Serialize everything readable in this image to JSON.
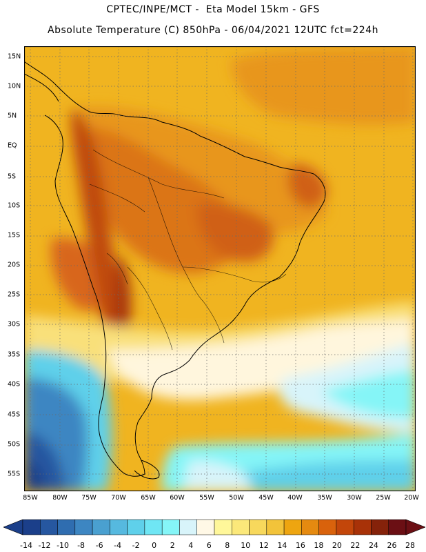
{
  "header": {
    "line1": "CPTEC/INPE/MCT -  Eta Model 15km - GFS",
    "line2": "Absolute Temperature (C) 850hPa - 06/04/2021 12UTC fct=224h"
  },
  "map": {
    "lat_labels": [
      "15N",
      "10N",
      "5N",
      "EQ",
      "5S",
      "10S",
      "15S",
      "20S",
      "25S",
      "30S",
      "35S",
      "40S",
      "45S",
      "50S",
      "55S"
    ],
    "lon_labels": [
      "85W",
      "80W",
      "75W",
      "70W",
      "65W",
      "60W",
      "55W",
      "50W",
      "45W",
      "40W",
      "35W",
      "30W",
      "25W",
      "20W"
    ],
    "lat_range": [
      16,
      -58
    ],
    "lon_range": [
      -86,
      -20
    ]
  },
  "legend": {
    "ticks": [
      "-14",
      "-12",
      "-10",
      "-8",
      "-6",
      "-4",
      "-2",
      "0",
      "2",
      "4",
      "6",
      "8",
      "10",
      "12",
      "14",
      "16",
      "18",
      "20",
      "22",
      "24",
      "26",
      "28"
    ],
    "colors": [
      "#1b3f8a",
      "#2657a0",
      "#2f6db0",
      "#3d86c2",
      "#4aa0d0",
      "#56b9df",
      "#5fd0ea",
      "#6fe6f4",
      "#85f5f7",
      "#d8f4fa",
      "#fff8e6",
      "#fff79a",
      "#fbe87a",
      "#f7d85c",
      "#f2c33a",
      "#eea510",
      "#e58a10",
      "#d9620c",
      "#c3460a",
      "#a83208",
      "#85220a",
      "#6b0f14"
    ]
  }
}
